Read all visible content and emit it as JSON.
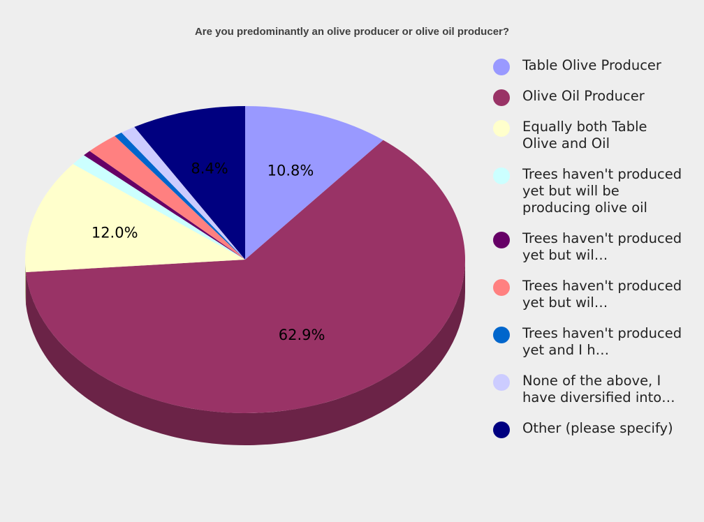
{
  "chart_data": {
    "type": "pie",
    "title": "Are you predominantly an olive producer or olive oil producer?",
    "slices": [
      {
        "name": "Table Olive Producer",
        "value": 10.8,
        "label": "10.8%",
        "color": "#9999ff",
        "side": "#6b6bb3"
      },
      {
        "name": "Olive Oil Producer",
        "value": 62.9,
        "label": "62.9%",
        "color": "#993366",
        "side": "#6b2347"
      },
      {
        "name": "Equally both Table Olive and Oil",
        "value": 12.0,
        "label": "12.0%",
        "color": "#ffffcc",
        "side": "#b3b38f"
      },
      {
        "name": "Trees haven't produced yet but will be producing olive oil",
        "value": 1.2,
        "label": "",
        "color": "#ccffff",
        "side": "#8fb3b3"
      },
      {
        "name": "Trees haven't produced yet but wil…",
        "value": 0.6,
        "label": "",
        "color": "#660066",
        "side": "#470047"
      },
      {
        "name": "Trees haven't produced yet but wil…",
        "value": 2.4,
        "label": "",
        "color": "#ff8080",
        "side": "#b35a5a"
      },
      {
        "name": "Trees haven't produced yet and I h…",
        "value": 0.6,
        "label": "",
        "color": "#0066cc",
        "side": "#00478f"
      },
      {
        "name": "None of the above, I have diversified into…",
        "value": 1.1,
        "label": "",
        "color": "#ccccff",
        "side": "#8f8fb3"
      },
      {
        "name": "Other (please specify)",
        "value": 8.4,
        "label": "8.4%",
        "color": "#000080",
        "side": "#00005a"
      }
    ],
    "legend_position": "right"
  }
}
